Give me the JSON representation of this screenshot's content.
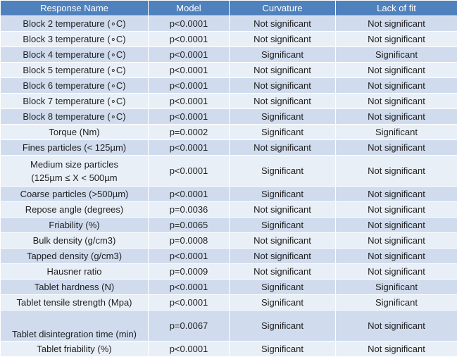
{
  "table": {
    "header": [
      "Response Name",
      "Model",
      "Curvature",
      "Lack of fit"
    ],
    "rows": [
      [
        "Block 2 temperature (∘C)",
        "p<0.0001",
        "Not significant",
        "Not significant"
      ],
      [
        "Block 3 temperature (∘C)",
        "p<0.0001",
        "Not significant",
        "Not significant"
      ],
      [
        "Block 4 temperature (∘C)",
        "p<0.0001",
        "Significant",
        "Significant"
      ],
      [
        "Block 5 temperature (∘C)",
        "p<0.0001",
        "Not significant",
        "Not significant"
      ],
      [
        "Block 6 temperature (∘C)",
        "p<0.0001",
        "Not significant",
        "Not significant"
      ],
      [
        "Block 7 temperature (∘C)",
        "p<0.0001",
        "Not significant",
        "Not significant"
      ],
      [
        "Block 8 temperature (∘C)",
        "p<0.0001",
        "Significant",
        "Not significant"
      ],
      [
        "Torque (Nm)",
        "p=0.0002",
        "Significant",
        "Significant"
      ],
      [
        "Fines particles (< 125µm)",
        "p<0.0001",
        "Not significant",
        "Not significant"
      ],
      [
        "Medium size particles\n(125µm ≤ X < 500µm",
        "p<0.0001",
        "Significant",
        "Not significant"
      ],
      [
        "Coarse particles (>500µm)",
        "p<0.0001",
        "Significant",
        "Not significant"
      ],
      [
        "Repose angle (degrees)",
        "p=0.0036",
        "Not significant",
        "Not significant"
      ],
      [
        "Friability (%)",
        "p=0.0065",
        "Significant",
        "Not significant"
      ],
      [
        "Bulk density (g/cm3)",
        "p=0.0008",
        "Not significant",
        "Not significant"
      ],
      [
        "Tapped density (g/cm3)",
        "p<0.0001",
        "Not significant",
        "Not significant"
      ],
      [
        "Hausner ratio",
        "p=0.0009",
        "Not significant",
        "Not significant"
      ],
      [
        "Tablet hardness (N)",
        "p<0.0001",
        "Significant",
        "Significant"
      ],
      [
        "Tablet tensile strength (Mpa)",
        "p<0.0001",
        "Significant",
        "Significant"
      ],
      [
        "Tablet disintegration time (min)",
        "p=0.0067",
        "Significant",
        "Not significant"
      ],
      [
        "Tablet friability (%)",
        "p<0.0001",
        "Significant",
        "Not significant"
      ]
    ]
  }
}
